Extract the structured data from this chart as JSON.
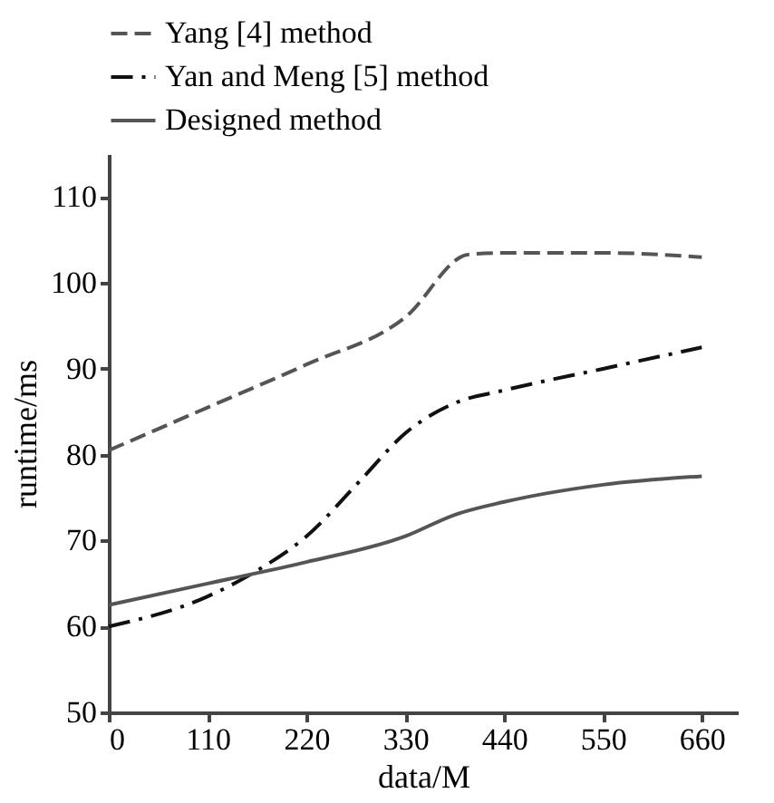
{
  "chart_data": {
    "type": "line",
    "xlabel": "data/M",
    "ylabel": "runtime/ms",
    "xlim": [
      0,
      700
    ],
    "xticks": [
      0,
      110,
      220,
      330,
      440,
      550,
      660
    ],
    "ylim": [
      50,
      115
    ],
    "yticks": [
      50,
      60,
      70,
      80,
      90,
      100,
      110
    ],
    "grid": false,
    "legend": "top",
    "marker": "none",
    "series": [
      {
        "name": "Yang  [4] method",
        "color": "#555555",
        "line_style": "dashed",
        "x": [
          0,
          110,
          220,
          330,
          400,
          440,
          550,
          660
        ],
        "values": [
          80.5,
          85.5,
          90.5,
          96,
          103.3,
          103.5,
          103.5,
          103
        ]
      },
      {
        "name": "Yan and Meng [5] method",
        "color": "#111111",
        "line_style": "dashdot",
        "x": [
          0,
          110,
          165,
          220,
          280,
          330,
          385,
          440,
          550,
          660
        ],
        "values": [
          60,
          63.5,
          66.5,
          70.5,
          77,
          82.5,
          86,
          87.5,
          90,
          92.5
        ]
      },
      {
        "name": "Designed method",
        "color": "#555555",
        "line_style": "solid",
        "x": [
          0,
          110,
          220,
          330,
          385,
          440,
          550,
          660
        ],
        "values": [
          62.5,
          65,
          67.5,
          70.5,
          73,
          74.5,
          76.5,
          77.5
        ]
      }
    ]
  }
}
